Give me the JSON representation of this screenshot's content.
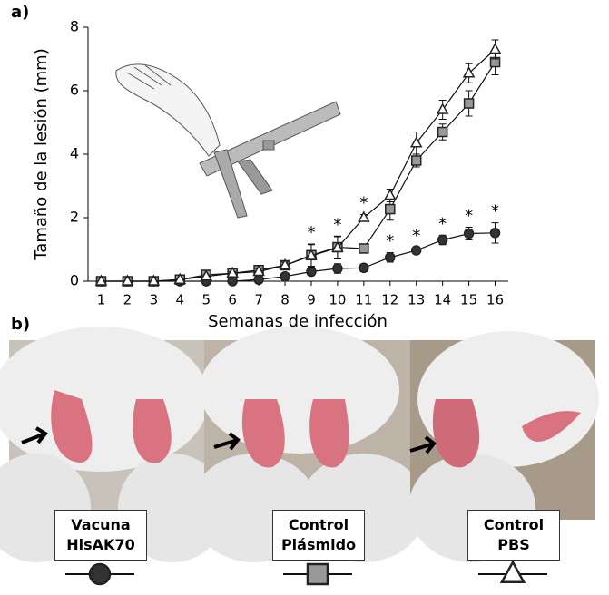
{
  "panel_labels": [
    "a)",
    "b)"
  ],
  "chart_data": {
    "type": "line",
    "x_label": "Semanas de infección",
    "y_label": "Tamaño de la lesión (mm)",
    "x": [
      1,
      2,
      3,
      4,
      5,
      6,
      7,
      8,
      9,
      10,
      11,
      12,
      13,
      14,
      15,
      16
    ],
    "xlim": [
      0.5,
      16.5
    ],
    "xticks": [
      1,
      2,
      3,
      4,
      5,
      6,
      7,
      8,
      9,
      10,
      11,
      12,
      13,
      14,
      15,
      16
    ],
    "ylim": [
      0,
      8
    ],
    "yticks": [
      0,
      2,
      4,
      6,
      8
    ],
    "series": [
      {
        "name": "Vacuna HisAK70",
        "marker": "circle",
        "color": "#333333",
        "values": [
          0,
          0,
          0,
          0,
          0,
          0,
          0.05,
          0.15,
          0.3,
          0.4,
          0.42,
          0.75,
          0.97,
          1.3,
          1.5,
          1.52
        ],
        "errors": [
          0,
          0,
          0,
          0,
          0,
          0,
          0.03,
          0.05,
          0.12,
          0.15,
          0.12,
          0.15,
          0.1,
          0.15,
          0.2,
          0.32
        ]
      },
      {
        "name": "Control Plásmido",
        "marker": "square",
        "color": "#999999",
        "values": [
          0,
          0,
          0,
          0.05,
          0.2,
          0.25,
          0.35,
          0.5,
          0.82,
          1.07,
          1.03,
          2.27,
          3.8,
          4.7,
          5.6,
          6.9
        ],
        "errors": [
          0,
          0,
          0,
          0.03,
          0.05,
          0.05,
          0.1,
          0.1,
          0.35,
          0.35,
          0.05,
          0.35,
          0.2,
          0.25,
          0.4,
          0.4
        ]
      },
      {
        "name": "Control PBS",
        "marker": "triangle",
        "color": "#ffffff",
        "values": [
          0,
          0,
          0,
          0.05,
          0.15,
          0.25,
          0.3,
          0.5,
          0.8,
          1.05,
          2.0,
          2.7,
          4.35,
          5.4,
          6.55,
          7.3
        ],
        "errors": [
          0,
          0,
          0,
          0.03,
          0.05,
          0.05,
          0.1,
          0.1,
          0.35,
          0.35,
          0.1,
          0.2,
          0.35,
          0.3,
          0.3,
          0.3
        ]
      }
    ],
    "annotations": [
      {
        "text": "*",
        "x": 9
      },
      {
        "text": "*",
        "x": 10
      },
      {
        "text": "*",
        "x": 11
      },
      {
        "text": "*",
        "x": 12
      },
      {
        "text": "*",
        "x": 13
      },
      {
        "text": "*",
        "x": 14
      },
      {
        "text": "*",
        "x": 15
      },
      {
        "text": "*",
        "x": 16
      }
    ]
  }
}
